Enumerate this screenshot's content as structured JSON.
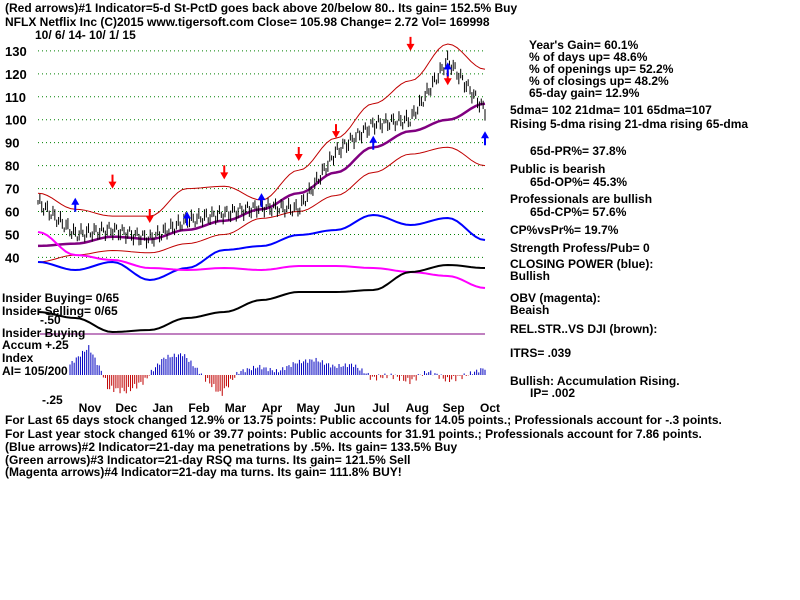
{
  "header": {
    "line1": "(Red arrows)#1 Indicator=5-d St-PctD goes back above 20/below 80.. Its gain= 152.5% Buy",
    "line2": "NFLX  Netflix Inc  (C)2015 www.tigersoft.com     Close=  105.98  Change= 2.72 Vol= 169998",
    "date_range": "10/ 6/ 14-  10/ 1/ 15"
  },
  "stats": {
    "years_gain": "Year's Gain= 60.1%",
    "days_up": "% of days up= 48.6%",
    "openings_up": "% of openings up= 52.2%",
    "closings_up": "% of closings up= 48.2%",
    "gain_65": "65-day gain= 12.9%",
    "dma_values": "5dma= 102 21dma= 101 65dma=107",
    "dma_trend": "Rising 5-dma  rising 21-dma  rising 65-dma",
    "pr_65d": "65d-PR%= 37.8%",
    "public_title": "Public is bearish",
    "public_op": "65d-OP%= 45.3%",
    "pro_title": "Professionals are bullish",
    "pro_cp": "65d-CP%= 57.6%",
    "cp_vs_pr": "CP%vsPr%=  19.7%",
    "strength": "Strength Profess/Pub= 0",
    "closing_power": "CLOSING POWER (blue):",
    "closing_power_val": "Bullish",
    "obv": "OBV (magenta):",
    "obv_val": "Beaish",
    "rel_str": "REL.STR..VS DJI (brown):",
    "itrs": "ITRS= .039",
    "bullish_acc": "Bullish: Accumulation Rising.",
    "ip": "IP=  .002"
  },
  "panel_labels": {
    "insider_buying": "Insider Buying= 0/65",
    "insider_selling": "Insider Selling= 0/65",
    "insider_buying2": "Insider Buying",
    "minus50": "-.50",
    "accum": "Accum",
    "plus25": "+.25",
    "index": "Index",
    "ai": "AI= 105/200",
    "minus25": "-.25"
  },
  "footer": {
    "line1": "For Last 65 days stock changed  12.9% or  13.75 points:  Public accounts for  14.05 points.;  Professionals account for -.3 points.",
    "line2": "For Last year stock changed  61% or  39.77 points:  Public accounts for  31.91 points.;  Professionals account for  7.86 points.",
    "line3": "(Blue arrows)#2 Indicator=21-day ma penetrations by .5%. Its gain= 133.5% Buy",
    "line4": "(Green arrows)#3 Indicator=21-day RSQ ma turns. Its gain= 121.5% Sell",
    "line5": "(Magenta arrows)#4 Indicator=21-day ma turns. Its gain= 111.8% BUY!"
  },
  "colors": {
    "price_bars": "#000000",
    "band": "#c00000",
    "ma65": "#800080",
    "closing_power": "#0000ff",
    "obv": "#ff00ff",
    "rel_str": "#000000",
    "buy_arrow": "#ff0000",
    "blue_arrow": "#0000ff",
    "grid": "#008000",
    "acc_pos": "#0000c0",
    "acc_neg": "#c00000"
  },
  "chart_data": {
    "type": "line",
    "title": "NFLX  Netflix Inc  (C)2015 www.tigersoft.com",
    "x_labels": [
      "Nov",
      "Dec",
      "Jan",
      "Feb",
      "Mar",
      "Apr",
      "May",
      "Jun",
      "Jul",
      "Aug",
      "Sep",
      "Oct"
    ],
    "y_ticks": [
      130,
      120,
      110,
      100,
      90,
      80,
      70,
      60,
      50,
      40
    ],
    "ylim": [
      38,
      133
    ],
    "grid": true,
    "x": [
      0,
      1,
      2,
      3,
      4,
      5,
      6,
      7,
      8,
      9,
      10,
      11,
      12
    ],
    "series": [
      {
        "values": [
          64,
          50,
          52,
          48,
          56,
          59,
          62,
          61,
          86,
          98,
          100,
          126,
          104
        ]
      },
      {
        "values": [
          45,
          46,
          49,
          48,
          52,
          56,
          61,
          68,
          77,
          88,
          95,
          100,
          107
        ]
      },
      {
        "values": [
          68,
          61,
          58,
          58,
          70,
          71,
          65,
          78,
          92,
          107,
          117,
          133,
          122
        ]
      },
      {
        "values": [
          38,
          41,
          43,
          42,
          46,
          50,
          57,
          60,
          67,
          77,
          85,
          88,
          80
        ]
      }
    ],
    "accumulation_index": {
      "range": [
        -0.25,
        0.5
      ],
      "values": [
        0.15,
        0.4,
        -0.12,
        -0.15,
        -0.05,
        0.25,
        0.3,
        0.0,
        -0.18,
        0.05,
        0.12,
        0.05,
        0.18,
        0.22,
        0.12,
        0.15,
        -0.03,
        0.0,
        -0.06,
        0.05,
        -0.05,
        0.0,
        0.1
      ]
    }
  }
}
